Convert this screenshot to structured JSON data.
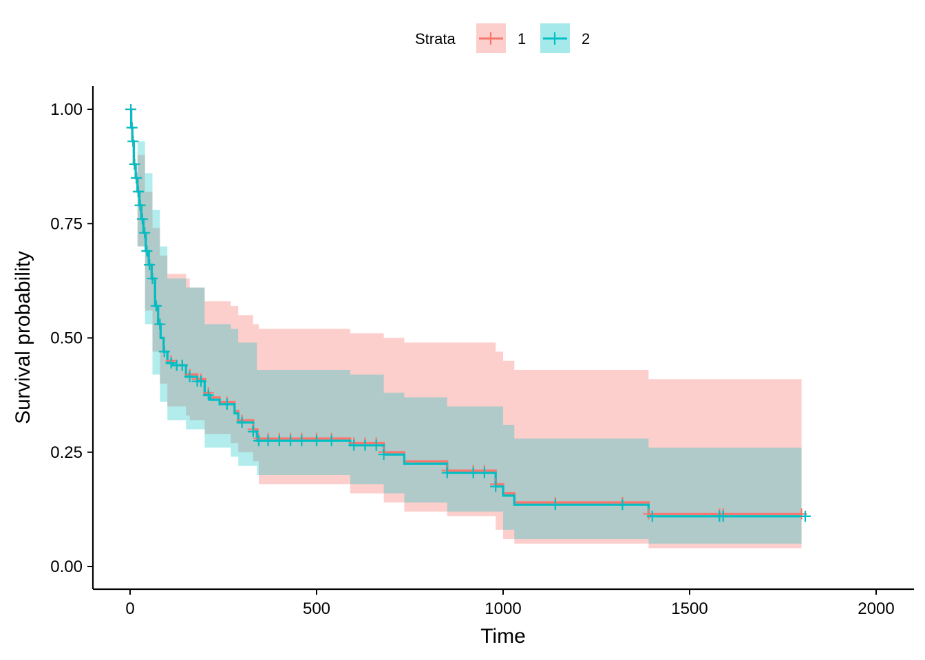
{
  "chart_data": {
    "type": "line",
    "subtype": "kaplan-meier step curves with confidence bands",
    "xlabel": "Time",
    "ylabel": "Survival probability",
    "xlim": [
      -100,
      2100
    ],
    "ylim": [
      -0.05,
      1.05
    ],
    "x_ticks": [
      0,
      500,
      1000,
      1500,
      2000
    ],
    "x_tick_labels": [
      "0",
      "500",
      "1000",
      "1500",
      "2000"
    ],
    "y_ticks": [
      0,
      0.25,
      0.5,
      0.75,
      1.0
    ],
    "y_tick_labels": [
      "0.00",
      "0.25",
      "0.50",
      "0.75",
      "1.00"
    ],
    "grid": false,
    "legend": {
      "title": "Strata",
      "position": "top"
    },
    "series": [
      {
        "name": "1",
        "color": "#F8766D",
        "curve": [
          [
            0,
            1.0
          ],
          [
            3,
            0.96
          ],
          [
            6,
            0.93
          ],
          [
            10,
            0.88
          ],
          [
            15,
            0.85
          ],
          [
            20,
            0.82
          ],
          [
            25,
            0.79
          ],
          [
            30,
            0.76
          ],
          [
            36,
            0.73
          ],
          [
            42,
            0.69
          ],
          [
            50,
            0.66
          ],
          [
            58,
            0.63
          ],
          [
            67,
            0.57
          ],
          [
            75,
            0.53
          ],
          [
            82,
            0.5
          ],
          [
            90,
            0.47
          ],
          [
            100,
            0.45
          ],
          [
            115,
            0.44
          ],
          [
            150,
            0.42
          ],
          [
            180,
            0.41
          ],
          [
            200,
            0.38
          ],
          [
            215,
            0.37
          ],
          [
            240,
            0.36
          ],
          [
            280,
            0.34
          ],
          [
            290,
            0.32
          ],
          [
            330,
            0.3
          ],
          [
            340,
            0.28
          ],
          [
            590,
            0.27
          ],
          [
            680,
            0.25
          ],
          [
            735,
            0.23
          ],
          [
            850,
            0.21
          ],
          [
            980,
            0.18
          ],
          [
            1000,
            0.16
          ],
          [
            1030,
            0.14
          ],
          [
            1390,
            0.115
          ],
          [
            1800,
            0.115
          ]
        ],
        "band": [
          [
            0,
            1.0,
            1.0
          ],
          [
            20,
            0.9,
            0.7
          ],
          [
            40,
            0.82,
            0.56
          ],
          [
            60,
            0.74,
            0.47
          ],
          [
            80,
            0.68,
            0.4
          ],
          [
            100,
            0.64,
            0.35
          ],
          [
            150,
            0.63,
            0.33
          ],
          [
            160,
            0.61,
            0.32
          ],
          [
            200,
            0.58,
            0.29
          ],
          [
            270,
            0.57,
            0.27
          ],
          [
            290,
            0.55,
            0.25
          ],
          [
            330,
            0.53,
            0.23
          ],
          [
            345,
            0.52,
            0.18
          ],
          [
            590,
            0.51,
            0.16
          ],
          [
            680,
            0.5,
            0.14
          ],
          [
            735,
            0.49,
            0.12
          ],
          [
            850,
            0.49,
            0.11
          ],
          [
            980,
            0.47,
            0.08
          ],
          [
            1000,
            0.45,
            0.06
          ],
          [
            1030,
            0.43,
            0.05
          ],
          [
            1390,
            0.41,
            0.04
          ],
          [
            1800,
            0.41,
            0.04
          ]
        ],
        "censor_x": [
          2,
          5,
          8,
          12,
          17,
          22,
          27,
          33,
          39,
          45,
          52,
          60,
          70,
          80,
          92,
          110,
          125,
          140,
          160,
          180,
          190,
          210,
          260,
          300,
          330,
          345,
          370,
          400,
          430,
          460,
          500,
          540,
          600,
          630,
          660,
          680,
          850,
          920,
          950,
          980,
          1140,
          1320,
          1390,
          1580,
          1590,
          1800
        ]
      },
      {
        "name": "2",
        "color": "#00BFC4",
        "curve": [
          [
            0,
            1.0
          ],
          [
            3,
            0.96
          ],
          [
            6,
            0.93
          ],
          [
            10,
            0.88
          ],
          [
            15,
            0.85
          ],
          [
            20,
            0.82
          ],
          [
            25,
            0.79
          ],
          [
            30,
            0.76
          ],
          [
            36,
            0.73
          ],
          [
            42,
            0.69
          ],
          [
            50,
            0.66
          ],
          [
            58,
            0.63
          ],
          [
            67,
            0.57
          ],
          [
            75,
            0.53
          ],
          [
            82,
            0.5
          ],
          [
            90,
            0.47
          ],
          [
            100,
            0.445
          ],
          [
            115,
            0.44
          ],
          [
            150,
            0.415
          ],
          [
            180,
            0.405
          ],
          [
            200,
            0.375
          ],
          [
            215,
            0.365
          ],
          [
            240,
            0.355
          ],
          [
            280,
            0.335
          ],
          [
            290,
            0.315
          ],
          [
            330,
            0.295
          ],
          [
            340,
            0.275
          ],
          [
            590,
            0.265
          ],
          [
            680,
            0.245
          ],
          [
            735,
            0.225
          ],
          [
            850,
            0.205
          ],
          [
            980,
            0.175
          ],
          [
            1000,
            0.155
          ],
          [
            1030,
            0.135
          ],
          [
            1390,
            0.11
          ],
          [
            1800,
            0.11
          ]
        ],
        "band": [
          [
            0,
            1.0,
            1.0
          ],
          [
            20,
            0.93,
            0.7
          ],
          [
            40,
            0.86,
            0.53
          ],
          [
            60,
            0.78,
            0.42
          ],
          [
            80,
            0.7,
            0.36
          ],
          [
            100,
            0.63,
            0.32
          ],
          [
            150,
            0.61,
            0.3
          ],
          [
            200,
            0.53,
            0.26
          ],
          [
            270,
            0.52,
            0.24
          ],
          [
            290,
            0.49,
            0.22
          ],
          [
            340,
            0.43,
            0.2
          ],
          [
            590,
            0.42,
            0.18
          ],
          [
            680,
            0.38,
            0.16
          ],
          [
            735,
            0.37,
            0.14
          ],
          [
            850,
            0.35,
            0.12
          ],
          [
            1000,
            0.31,
            0.08
          ],
          [
            1030,
            0.28,
            0.06
          ],
          [
            1390,
            0.26,
            0.05
          ],
          [
            1800,
            0.26,
            0.05
          ]
        ],
        "censor_x": [
          2,
          5,
          8,
          12,
          17,
          22,
          27,
          33,
          39,
          45,
          52,
          60,
          70,
          80,
          92,
          110,
          125,
          140,
          160,
          180,
          190,
          210,
          260,
          300,
          330,
          345,
          370,
          400,
          430,
          460,
          500,
          540,
          600,
          630,
          660,
          680,
          850,
          920,
          950,
          980,
          1140,
          1320,
          1400,
          1580,
          1590,
          1810
        ]
      }
    ]
  }
}
